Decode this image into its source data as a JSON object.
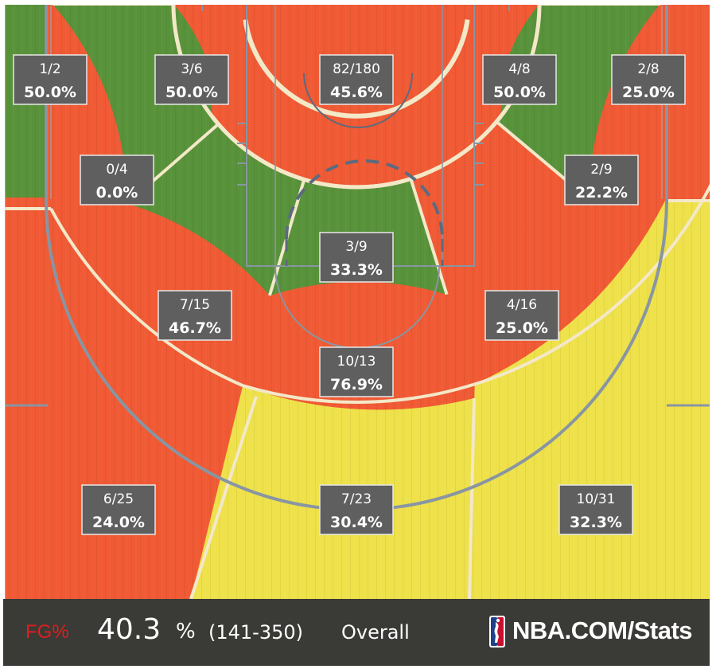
{
  "colors": {
    "hot": "#58923a",
    "cold": "#f05a34",
    "average": "#eee14a",
    "court_lines": "#f3e8c8",
    "baseline_lines": "#8895a3",
    "label_bg": "#5f5f5f",
    "footer_bg": "#3a3a36",
    "fg_label": "#e01e1e"
  },
  "chart_data": {
    "type": "heatmap",
    "zones": [
      {
        "id": "left-corner-three",
        "made": 1,
        "attempts": 2,
        "made_attempts": "1/2",
        "pct": "50.0%",
        "rating": "hot"
      },
      {
        "id": "left-baseline-mid",
        "made": 3,
        "attempts": 6,
        "made_attempts": "3/6",
        "pct": "50.0%",
        "rating": "hot"
      },
      {
        "id": "restricted-area",
        "made": 82,
        "attempts": 180,
        "made_attempts": "82/180",
        "pct": "45.6%",
        "rating": "cold"
      },
      {
        "id": "right-baseline-mid",
        "made": 4,
        "attempts": 8,
        "made_attempts": "4/8",
        "pct": "50.0%",
        "rating": "hot"
      },
      {
        "id": "right-corner-three",
        "made": 2,
        "attempts": 8,
        "made_attempts": "2/8",
        "pct": "25.0%",
        "rating": "cold"
      },
      {
        "id": "left-short-mid",
        "made": 0,
        "attempts": 4,
        "made_attempts": "0/4",
        "pct": "0.0%",
        "rating": "cold"
      },
      {
        "id": "right-short-mid",
        "made": 2,
        "attempts": 9,
        "made_attempts": "2/9",
        "pct": "22.2%",
        "rating": "cold"
      },
      {
        "id": "paint-non-ra",
        "made": 3,
        "attempts": 9,
        "made_attempts": "3/9",
        "pct": "33.3%",
        "rating": "cold"
      },
      {
        "id": "left-wing-mid",
        "made": 7,
        "attempts": 15,
        "made_attempts": "7/15",
        "pct": "46.7%",
        "rating": "hot"
      },
      {
        "id": "right-wing-mid",
        "made": 4,
        "attempts": 16,
        "made_attempts": "4/16",
        "pct": "25.0%",
        "rating": "cold"
      },
      {
        "id": "center-mid",
        "made": 10,
        "attempts": 13,
        "made_attempts": "10/13",
        "pct": "76.9%",
        "rating": "hot"
      },
      {
        "id": "left-wing-three",
        "made": 6,
        "attempts": 25,
        "made_attempts": "6/25",
        "pct": "24.0%",
        "rating": "cold"
      },
      {
        "id": "top-key-three",
        "made": 7,
        "attempts": 23,
        "made_attempts": "7/23",
        "pct": "30.4%",
        "rating": "average"
      },
      {
        "id": "right-wing-three",
        "made": 10,
        "attempts": 31,
        "made_attempts": "10/31",
        "pct": "32.3%",
        "rating": "average"
      }
    ]
  },
  "footer": {
    "fg_label": "FG%",
    "fg_value": "40.3",
    "fg_pct_sign": "%",
    "fg_count": "(141-350)",
    "fg_overall": "Overall",
    "brand": "NBA.COM/Stats",
    "logo_icon": "nba-logo-icon"
  }
}
